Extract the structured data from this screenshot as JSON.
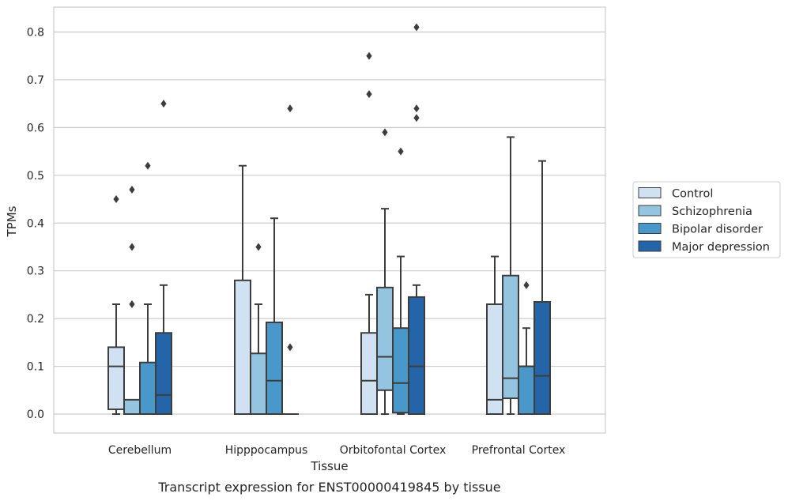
{
  "caption": "Transcript expression for ENST00000419845 by tissue",
  "chart_data": {
    "type": "box",
    "xlabel": "Tissue",
    "ylabel": "TPMs",
    "ylim": [
      -0.04,
      0.85
    ],
    "yticks": [
      "0.0",
      "0.1",
      "0.2",
      "0.3",
      "0.4",
      "0.5",
      "0.6",
      "0.7",
      "0.8"
    ],
    "grid": "horizontal",
    "legend_position": "right",
    "categories": [
      "Cerebellum",
      "Hipppocampus",
      "Orbitofontal Cortex",
      "Prefrontal Cortex"
    ],
    "series": [
      {
        "name": "Control",
        "color": "#d0e1f1",
        "boxes": [
          {
            "whislo": 0.0,
            "q1": 0.01,
            "med": 0.1,
            "q3": 0.14,
            "whishi": 0.23,
            "fliers": [
              0.45
            ]
          },
          {
            "whislo": 0.0,
            "q1": 0.0,
            "med": 0.0,
            "q3": 0.28,
            "whishi": 0.52,
            "fliers": []
          },
          {
            "whislo": 0.0,
            "q1": 0.0,
            "med": 0.07,
            "q3": 0.17,
            "whishi": 0.25,
            "fliers": [
              0.67,
              0.75
            ]
          },
          {
            "whislo": 0.0,
            "q1": 0.0,
            "med": 0.03,
            "q3": 0.23,
            "whishi": 0.33,
            "fliers": []
          }
        ]
      },
      {
        "name": "Schizophrenia",
        "color": "#94c4df",
        "boxes": [
          {
            "whislo": 0.0,
            "q1": 0.0,
            "med": 0.0,
            "q3": 0.03,
            "whishi": 0.03,
            "fliers": [
              0.23,
              0.35,
              0.47
            ]
          },
          {
            "whislo": 0.0,
            "q1": 0.0,
            "med": 0.0,
            "q3": 0.127,
            "whishi": 0.23,
            "fliers": [
              0.35
            ]
          },
          {
            "whislo": 0.0,
            "q1": 0.05,
            "med": 0.12,
            "q3": 0.265,
            "whishi": 0.43,
            "fliers": [
              0.59
            ]
          },
          {
            "whislo": 0.0,
            "q1": 0.033,
            "med": 0.075,
            "q3": 0.29,
            "whishi": 0.58,
            "fliers": []
          }
        ]
      },
      {
        "name": "Bipolar disorder",
        "color": "#4a98c9",
        "boxes": [
          {
            "whislo": 0.0,
            "q1": 0.0,
            "med": 0.0,
            "q3": 0.108,
            "whishi": 0.23,
            "fliers": [
              0.52
            ]
          },
          {
            "whislo": 0.0,
            "q1": 0.0,
            "med": 0.07,
            "q3": 0.192,
            "whishi": 0.41,
            "fliers": []
          },
          {
            "whislo": 0.0,
            "q1": 0.003,
            "med": 0.065,
            "q3": 0.18,
            "whishi": 0.33,
            "fliers": [
              0.55
            ]
          },
          {
            "whislo": 0.0,
            "q1": 0.0,
            "med": 0.1,
            "q3": 0.1,
            "whishi": 0.18,
            "fliers": [
              0.27
            ]
          }
        ]
      },
      {
        "name": "Major depression",
        "color": "#2464a9",
        "boxes": [
          {
            "whislo": 0.0,
            "q1": 0.0,
            "med": 0.04,
            "q3": 0.17,
            "whishi": 0.27,
            "fliers": [
              0.65
            ]
          },
          {
            "whislo": 0.0,
            "q1": 0.0,
            "med": 0.0,
            "q3": 0.0,
            "whishi": 0.0,
            "fliers": [
              0.14,
              0.64
            ]
          },
          {
            "whislo": 0.0,
            "q1": 0.0,
            "med": 0.1,
            "q3": 0.245,
            "whishi": 0.27,
            "fliers": [
              0.62,
              0.64,
              0.81
            ]
          },
          {
            "whislo": 0.0,
            "q1": 0.0,
            "med": 0.08,
            "q3": 0.235,
            "whishi": 0.53,
            "fliers": []
          }
        ]
      }
    ]
  }
}
